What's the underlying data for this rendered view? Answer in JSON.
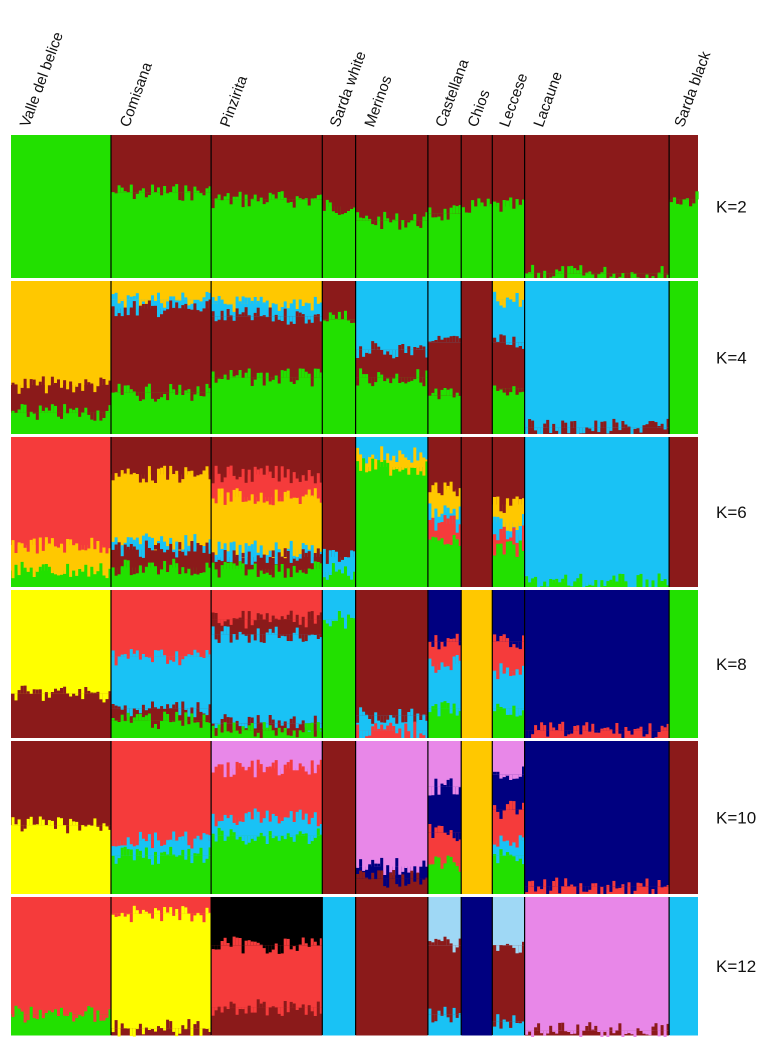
{
  "populations": [
    {
      "name": "Valle del belice",
      "weight": 9
    },
    {
      "name": "Comisana",
      "weight": 9
    },
    {
      "name": "Pinzirita",
      "weight": 10
    },
    {
      "name": "Sarda white",
      "weight": 3
    },
    {
      "name": "Merinos",
      "weight": 6.5
    },
    {
      "name": "Castellana",
      "weight": 3
    },
    {
      "name": "Chios",
      "weight": 2.8
    },
    {
      "name": "Leccese",
      "weight": 2.9
    },
    {
      "name": "Lacaune",
      "weight": 13
    },
    {
      "name": "Sarda black",
      "weight": 2.6
    }
  ],
  "colors": {
    "green": "#22e000",
    "brown": "#8b1a1a",
    "orange": "#ffc800",
    "sky": "#19c2f5",
    "red": "#f53b3b",
    "yellow": "#ffff00",
    "navy": "#000080",
    "black": "#000000",
    "pink": "#e887e8",
    "lightblue": "#9fd8f5"
  },
  "panels": [
    {
      "label": "K=2",
      "pops": [
        [
          [
            "green",
            1
          ]
        ],
        [
          [
            "brown",
            0.4
          ],
          [
            "green",
            0.6
          ]
        ],
        [
          [
            "brown",
            0.45
          ],
          [
            "green",
            0.55
          ]
        ],
        [
          [
            "brown",
            0.5
          ],
          [
            "green",
            0.5
          ]
        ],
        [
          [
            "brown",
            0.6
          ],
          [
            "green",
            0.4
          ]
        ],
        [
          [
            "brown",
            0.55
          ],
          [
            "green",
            0.45
          ]
        ],
        [
          [
            "brown",
            0.5
          ],
          [
            "green",
            0.5
          ]
        ],
        [
          [
            "brown",
            0.5
          ],
          [
            "green",
            0.5
          ]
        ],
        [
          [
            "brown",
            0.97
          ],
          [
            "green",
            0.03
          ]
        ],
        [
          [
            "brown",
            0.45
          ],
          [
            "green",
            0.55
          ]
        ]
      ]
    },
    {
      "label": "K=4",
      "pops": [
        [
          [
            "orange",
            0.68
          ],
          [
            "brown",
            0.18
          ],
          [
            "green",
            0.14
          ]
        ],
        [
          [
            "orange",
            0.12
          ],
          [
            "sky",
            0.06
          ],
          [
            "brown",
            0.55
          ],
          [
            "green",
            0.27
          ]
        ],
        [
          [
            "orange",
            0.15
          ],
          [
            "sky",
            0.08
          ],
          [
            "brown",
            0.4
          ],
          [
            "green",
            0.37
          ]
        ],
        [
          [
            "brown",
            0.25
          ],
          [
            "green",
            0.75
          ]
        ],
        [
          [
            "sky",
            0.45
          ],
          [
            "brown",
            0.18
          ],
          [
            "green",
            0.37
          ]
        ],
        [
          [
            "sky",
            0.4
          ],
          [
            "brown",
            0.35
          ],
          [
            "green",
            0.25
          ]
        ],
        [
          [
            "brown",
            1
          ]
        ],
        [
          [
            "orange",
            0.12
          ],
          [
            "sky",
            0.28
          ],
          [
            "brown",
            0.3
          ],
          [
            "green",
            0.3
          ]
        ],
        [
          [
            "sky",
            0.96
          ],
          [
            "brown",
            0.04
          ]
        ],
        [
          [
            "green",
            1
          ]
        ]
      ]
    },
    {
      "label": "K=6",
      "pops": [
        [
          [
            "red",
            0.72
          ],
          [
            "orange",
            0.17
          ],
          [
            "green",
            0.11
          ]
        ],
        [
          [
            "brown",
            0.25
          ],
          [
            "orange",
            0.45
          ],
          [
            "sky",
            0.05
          ],
          [
            "brown",
            0.12
          ],
          [
            "green",
            0.13
          ]
        ],
        [
          [
            "brown",
            0.25
          ],
          [
            "red",
            0.15
          ],
          [
            "orange",
            0.35
          ],
          [
            "sky",
            0.05
          ],
          [
            "brown",
            0.08
          ],
          [
            "green",
            0.12
          ]
        ],
        [
          [
            "brown",
            0.8
          ],
          [
            "sky",
            0.1
          ],
          [
            "green",
            0.1
          ]
        ],
        [
          [
            "sky",
            0.12
          ],
          [
            "orange",
            0.08
          ],
          [
            "green",
            0.8
          ]
        ],
        [
          [
            "brown",
            0.35
          ],
          [
            "orange",
            0.15
          ],
          [
            "sky",
            0.08
          ],
          [
            "red",
            0.12
          ],
          [
            "green",
            0.3
          ]
        ],
        [
          [
            "brown",
            1
          ]
        ],
        [
          [
            "brown",
            0.45
          ],
          [
            "orange",
            0.12
          ],
          [
            "sky",
            0.08
          ],
          [
            "red",
            0.1
          ],
          [
            "green",
            0.25
          ]
        ],
        [
          [
            "sky",
            0.97
          ],
          [
            "green",
            0.03
          ]
        ],
        [
          [
            "brown",
            1
          ]
        ]
      ]
    },
    {
      "label": "K=8",
      "pops": [
        [
          [
            "yellow",
            0.7
          ],
          [
            "brown",
            0.3
          ]
        ],
        [
          [
            "red",
            0.45
          ],
          [
            "sky",
            0.35
          ],
          [
            "brown",
            0.08
          ],
          [
            "green",
            0.12
          ]
        ],
        [
          [
            "red",
            0.2
          ],
          [
            "brown",
            0.1
          ],
          [
            "sky",
            0.6
          ],
          [
            "brown",
            0.05
          ],
          [
            "green",
            0.05
          ]
        ],
        [
          [
            "sky",
            0.2
          ],
          [
            "green",
            0.8
          ]
        ],
        [
          [
            "brown",
            0.85
          ],
          [
            "sky",
            0.1
          ],
          [
            "red",
            0.05
          ]
        ],
        [
          [
            "navy",
            0.35
          ],
          [
            "red",
            0.15
          ],
          [
            "sky",
            0.3
          ],
          [
            "green",
            0.2
          ]
        ],
        [
          [
            "orange",
            1
          ]
        ],
        [
          [
            "navy",
            0.35
          ],
          [
            "red",
            0.2
          ],
          [
            "sky",
            0.25
          ],
          [
            "green",
            0.2
          ]
        ],
        [
          [
            "navy",
            0.95
          ],
          [
            "red",
            0.05
          ]
        ],
        [
          [
            "green",
            1
          ]
        ]
      ]
    },
    {
      "label": "K=10",
      "pops": [
        [
          [
            "brown",
            0.55
          ],
          [
            "yellow",
            0.45
          ]
        ],
        [
          [
            "red",
            0.65
          ],
          [
            "sky",
            0.1
          ],
          [
            "green",
            0.25
          ]
        ],
        [
          [
            "pink",
            0.18
          ],
          [
            "red",
            0.32
          ],
          [
            "sky",
            0.12
          ],
          [
            "green",
            0.38
          ]
        ],
        [
          [
            "brown",
            1
          ]
        ],
        [
          [
            "pink",
            0.82
          ],
          [
            "navy",
            0.08
          ],
          [
            "brown",
            0.1
          ]
        ],
        [
          [
            "pink",
            0.3
          ],
          [
            "navy",
            0.3
          ],
          [
            "red",
            0.2
          ],
          [
            "green",
            0.2
          ]
        ],
        [
          [
            "orange",
            1
          ]
        ],
        [
          [
            "pink",
            0.22
          ],
          [
            "navy",
            0.23
          ],
          [
            "red",
            0.2
          ],
          [
            "sky",
            0.1
          ],
          [
            "green",
            0.25
          ]
        ],
        [
          [
            "navy",
            0.95
          ],
          [
            "red",
            0.05
          ]
        ],
        [
          [
            "brown",
            1
          ]
        ]
      ]
    },
    {
      "label": "K=12",
      "pops": [
        [
          [
            "red",
            0.85
          ],
          [
            "green",
            0.15
          ]
        ],
        [
          [
            "red",
            0.12
          ],
          [
            "yellow",
            0.83
          ],
          [
            "brown",
            0.05
          ]
        ],
        [
          [
            "black",
            0.35
          ],
          [
            "red",
            0.45
          ],
          [
            "brown",
            0.2
          ]
        ],
        [
          [
            "sky",
            1
          ]
        ],
        [
          [
            "brown",
            1
          ]
        ],
        [
          [
            "lightblue",
            0.35
          ],
          [
            "brown",
            0.5
          ],
          [
            "sky",
            0.15
          ]
        ],
        [
          [
            "navy",
            1
          ]
        ],
        [
          [
            "lightblue",
            0.35
          ],
          [
            "brown",
            0.55
          ],
          [
            "sky",
            0.1
          ]
        ],
        [
          [
            "pink",
            0.97
          ],
          [
            "brown",
            0.03
          ]
        ],
        [
          [
            "sky",
            1
          ]
        ]
      ]
    }
  ]
}
